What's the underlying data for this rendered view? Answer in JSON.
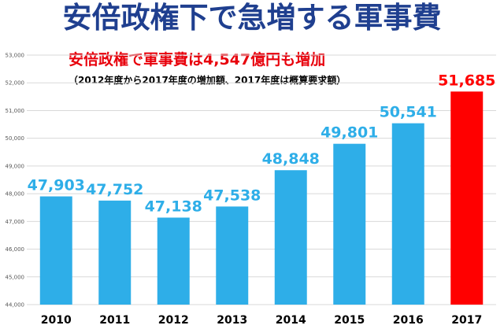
{
  "chart_data": {
    "type": "bar",
    "title": "安倍政権下で急増する軍事費",
    "subtitle": "安倍政権で軍事費は4,547億円も増加",
    "note": "（2012年度から2017年度の増加額、2017年度は概算要求額）",
    "categories": [
      "2010",
      "2011",
      "2012",
      "2013",
      "2014",
      "2015",
      "2016",
      "2017"
    ],
    "values": [
      47903,
      47752,
      47138,
      47538,
      48848,
      49801,
      50541,
      51685
    ],
    "value_labels": [
      "47,903",
      "47,752",
      "47,138",
      "47,538",
      "48,848",
      "49,801",
      "50,541",
      "51,685"
    ],
    "ylim": [
      44000,
      53000
    ],
    "yticks": [
      44000,
      45000,
      46000,
      47000,
      48000,
      49000,
      50000,
      51000,
      52000,
      53000
    ],
    "ytick_labels": [
      "44,000",
      "45,000",
      "46,000",
      "47,000",
      "48,000",
      "49,000",
      "50,000",
      "51,000",
      "52,000",
      "53,000"
    ],
    "grid": true,
    "colors": {
      "title": "#1f3f8f",
      "subtitle": "#e8000b",
      "bar": "#2eaee8",
      "highlight_bar": "#ff0000",
      "value_label": "#2eaee8",
      "highlight_label": "#ff0000",
      "grid": "#d9d9d9",
      "axis_text": "#595959"
    },
    "highlight_index": 7
  }
}
